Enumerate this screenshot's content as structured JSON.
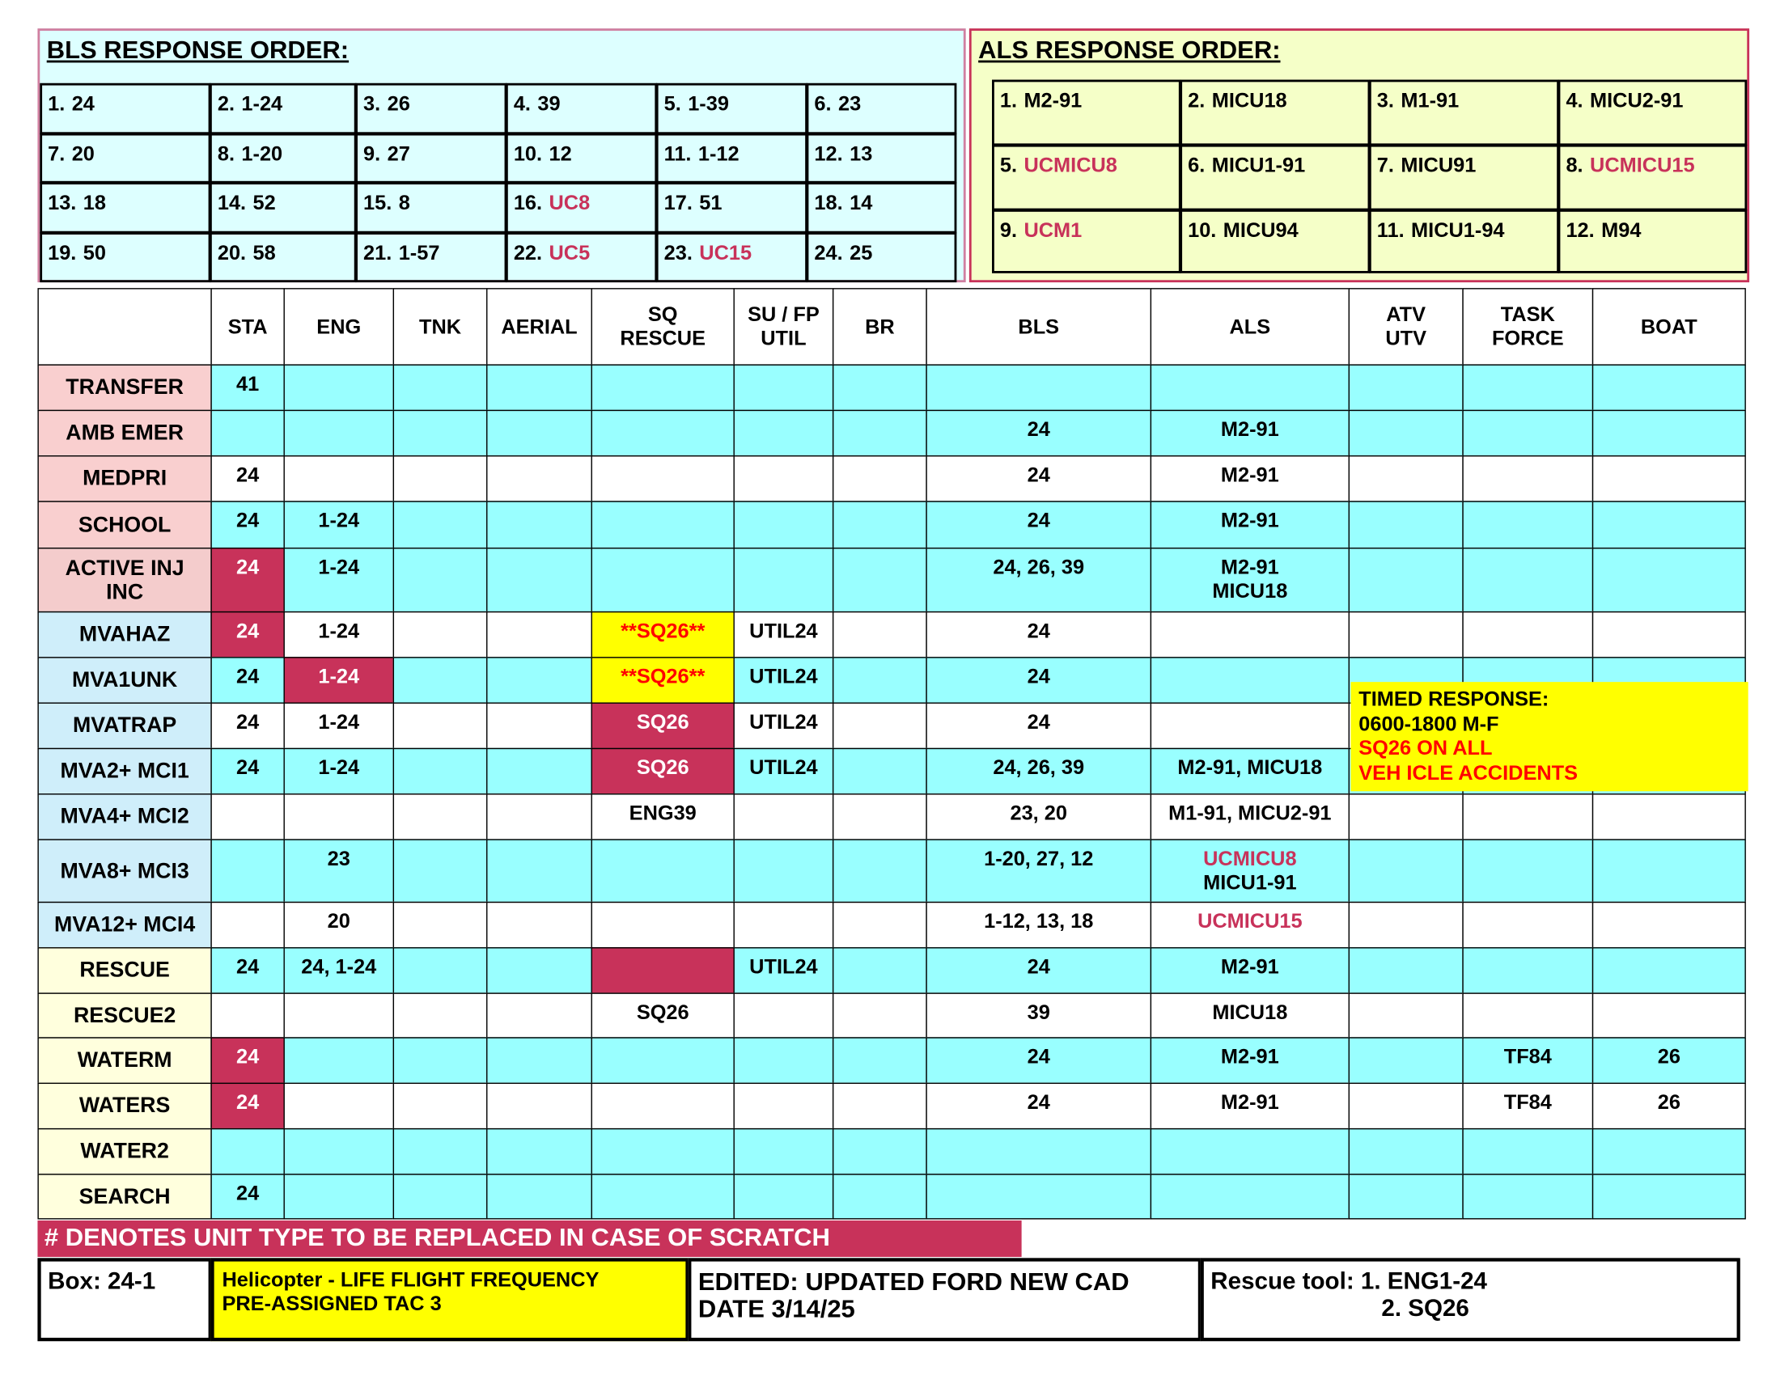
{
  "bls_order": {
    "title": "BLS RESPONSE ORDER:",
    "items": [
      {
        "n": "1.",
        "unit": "24"
      },
      {
        "n": "2.",
        "unit": "1-24"
      },
      {
        "n": "3.",
        "unit": "26"
      },
      {
        "n": "4.",
        "unit": "39"
      },
      {
        "n": "5.",
        "unit": "1-39"
      },
      {
        "n": "6.",
        "unit": "23"
      },
      {
        "n": "7.",
        "unit": "20"
      },
      {
        "n": "8.",
        "unit": "1-20"
      },
      {
        "n": "9.",
        "unit": "27"
      },
      {
        "n": "10.",
        "unit": "12"
      },
      {
        "n": "11.",
        "unit": "1-12"
      },
      {
        "n": "12.",
        "unit": "13"
      },
      {
        "n": "13.",
        "unit": "18"
      },
      {
        "n": "14.",
        "unit": "52"
      },
      {
        "n": "15.",
        "unit": "8"
      },
      {
        "n": "16.",
        "unit": "UC8",
        "color": "#c8325a"
      },
      {
        "n": "17.",
        "unit": "51"
      },
      {
        "n": "18.",
        "unit": "14"
      },
      {
        "n": "19.",
        "unit": "50"
      },
      {
        "n": "20.",
        "unit": "58"
      },
      {
        "n": "21.",
        "unit": "1-57"
      },
      {
        "n": "22.",
        "unit": "UC5",
        "color": "#c8325a"
      },
      {
        "n": "23.",
        "unit": "UC15",
        "color": "#c8325a"
      },
      {
        "n": "24.",
        "unit": "25"
      }
    ]
  },
  "als_order": {
    "title": "ALS RESPONSE ORDER:",
    "items": [
      {
        "n": "1.",
        "unit": "M2-91"
      },
      {
        "n": "2.",
        "unit": "MICU18"
      },
      {
        "n": "3.",
        "unit": "M1-91"
      },
      {
        "n": "4.",
        "unit": "MICU2-91"
      },
      {
        "n": "5.",
        "unit": "UCMICU8",
        "color": "#c8325a"
      },
      {
        "n": "6.",
        "unit": "MICU1-91"
      },
      {
        "n": "7.",
        "unit": "MICU91"
      },
      {
        "n": "8.",
        "unit": "UCMICU15",
        "color": "#c8325a"
      },
      {
        "n": "9.",
        "unit": "UCM1",
        "color": "#c8325a"
      },
      {
        "n": "10.",
        "unit": "MICU94"
      },
      {
        "n": "11.",
        "unit": "MICU1-94"
      },
      {
        "n": "12.",
        "unit": "M94"
      }
    ]
  },
  "table": {
    "columns": [
      "STA",
      "ENG",
      "TNK",
      "AERIAL",
      "SQ\nRESCUE",
      "SU / FP\nUTIL",
      "BR",
      "BLS",
      "ALS",
      "ATV\nUTV",
      "TASK\nFORCE",
      "BOAT"
    ],
    "rows": [
      {
        "label": "TRANSFER",
        "label_bg": "#f9cfcf",
        "bg": "#99ffff",
        "cells": [
          "41",
          null,
          null,
          null,
          null,
          null,
          null,
          null,
          null,
          null,
          null,
          null
        ]
      },
      {
        "label": "AMB EMER",
        "label_bg": "#f9cfcf",
        "bg": "#99ffff",
        "cells": [
          null,
          null,
          null,
          null,
          null,
          null,
          null,
          "24",
          "M2-91",
          null,
          null,
          null
        ]
      },
      {
        "label": "MEDPRI",
        "label_bg": "#f9cfcf",
        "bg": "#ffffff",
        "cells": [
          "24",
          null,
          null,
          null,
          null,
          null,
          null,
          "24",
          "M2-91",
          null,
          null,
          null
        ]
      },
      {
        "label": "SCHOOL",
        "label_bg": "#f9cfcf",
        "bg": "#99ffff",
        "cells": [
          "24",
          "1-24",
          null,
          null,
          null,
          null,
          null,
          "24",
          "M2-91",
          null,
          null,
          null
        ]
      },
      {
        "label": "ACTIVE INJ\nINC",
        "label_bg": "#f4cccc",
        "bg": "#99ffff",
        "cells": [
          {
            "text": "24",
            "fill": "#c8325a",
            "color": "#ffffff"
          },
          "1-24",
          null,
          null,
          null,
          null,
          null,
          "24, 26, 39",
          "M2-91\nMICU18",
          null,
          null,
          null
        ]
      },
      {
        "label": "MVAHAZ",
        "label_bg": "#cfeefa",
        "bg": "#ffffff",
        "cells": [
          {
            "text": "24",
            "fill": "#c8325a",
            "color": "#ffffff"
          },
          "1-24",
          null,
          null,
          {
            "text": "**SQ26**",
            "fill": "#ffff00",
            "color": "#ff0000"
          },
          "UTIL24",
          null,
          "24",
          null,
          null,
          null,
          null
        ]
      },
      {
        "label": "MVA1UNK",
        "label_bg": "#cfeefa",
        "bg": "#99ffff",
        "cells": [
          "24",
          {
            "text": "1-24",
            "fill": "#c8325a",
            "color": "#ffffff"
          },
          null,
          null,
          {
            "text": "**SQ26**",
            "fill": "#ffff00",
            "color": "#ff0000"
          },
          "UTIL24",
          null,
          "24",
          null,
          null,
          null,
          null
        ]
      },
      {
        "label": "MVATRAP",
        "label_bg": "#cfeefa",
        "bg": "#ffffff",
        "cells": [
          "24",
          "1-24",
          null,
          null,
          {
            "text": "SQ26",
            "fill": "#c8325a",
            "color": "#ffffff"
          },
          "UTIL24",
          null,
          "24",
          null,
          null,
          null,
          null
        ]
      },
      {
        "label": "MVA2+ MCI1",
        "label_bg": "#cfeefa",
        "bg": "#99ffff",
        "cells": [
          "24",
          "1-24",
          null,
          null,
          {
            "text": "SQ26",
            "fill": "#c8325a",
            "color": "#ffffff"
          },
          "UTIL24",
          null,
          "24, 26, 39",
          "M2-91, MICU18",
          null,
          null,
          null
        ]
      },
      {
        "label": "MVA4+ MCI2",
        "label_bg": "#cfeefa",
        "bg": "#ffffff",
        "cells": [
          null,
          null,
          null,
          null,
          "ENG39",
          null,
          null,
          "23, 20",
          "M1-91, MICU2-91",
          null,
          null,
          null
        ]
      },
      {
        "label": "MVA8+ MCI3",
        "label_bg": "#cfeefa",
        "bg": "#99ffff",
        "cells": [
          null,
          "23",
          null,
          null,
          null,
          null,
          null,
          "1-20, 27, 12",
          [
            {
              "text": "UCMICU8",
              "color": "#c8325a"
            },
            {
              "text": "MICU1-91"
            }
          ],
          null,
          null,
          null
        ]
      },
      {
        "label": "MVA12+ MCI4",
        "label_bg": "#cfeefa",
        "bg": "#ffffff",
        "cells": [
          null,
          "20",
          null,
          null,
          null,
          null,
          null,
          "1-12, 13, 18",
          {
            "text": "UCMICU15",
            "color": "#c8325a"
          },
          null,
          null,
          null
        ]
      },
      {
        "label": "RESCUE",
        "label_bg": "#ffffdd",
        "bg": "#99ffff",
        "cells": [
          "24",
          "24, 1-24",
          null,
          null,
          {
            "fill": "#c8325a"
          },
          "UTIL24",
          null,
          "24",
          "M2-91",
          null,
          null,
          null
        ]
      },
      {
        "label": "RESCUE2",
        "label_bg": "#ffffdd",
        "bg": "#ffffff",
        "cells": [
          null,
          null,
          null,
          null,
          "SQ26",
          null,
          null,
          "39",
          "MICU18",
          null,
          null,
          null
        ]
      },
      {
        "label": "WATERM",
        "label_bg": "#ffffdd",
        "bg": "#99ffff",
        "cells": [
          {
            "text": "24",
            "fill": "#c8325a",
            "color": "#ffffff"
          },
          null,
          null,
          null,
          null,
          null,
          null,
          "24",
          "M2-91",
          null,
          "TF84",
          "26"
        ]
      },
      {
        "label": "WATERS",
        "label_bg": "#ffffdd",
        "bg": "#ffffff",
        "cells": [
          {
            "text": "24",
            "fill": "#c8325a",
            "color": "#ffffff"
          },
          null,
          null,
          null,
          null,
          null,
          null,
          "24",
          "M2-91",
          null,
          "TF84",
          "26"
        ]
      },
      {
        "label": "WATER2",
        "label_bg": "#ffffdd",
        "bg": "#99ffff",
        "cells": [
          null,
          null,
          null,
          null,
          null,
          null,
          null,
          null,
          null,
          null,
          null,
          null
        ]
      },
      {
        "label": "SEARCH",
        "label_bg": "#ffffdd",
        "bg": "#99ffff",
        "cells": [
          "24",
          null,
          null,
          null,
          null,
          null,
          null,
          null,
          null,
          null,
          null,
          null
        ]
      }
    ]
  },
  "timed_response": {
    "lines": [
      {
        "text": "TIMED RESPONSE:"
      },
      {
        "text": "0600-1800 M-F"
      },
      {
        "text": "SQ26 ON ALL",
        "color": "#ff0000"
      },
      {
        "text": "VEH ICLE ACCIDENTS",
        "color": "#ff0000"
      }
    ]
  },
  "scratch_note": "# DENOTES UNIT  TYPE TO BE REPLACED IN CASE OF SCRATCH",
  "footer": {
    "box": "Box: 24-1",
    "helicopter": [
      "Helicopter  - LIFE FLIGHT FREQUENCY",
      "PRE-ASSIGNED TAC 3"
    ],
    "edited": [
      "EDITED:  UPDATED FORD NEW CAD",
      "DATE 3/14/25"
    ],
    "rescue_tool": [
      "Rescue tool: 1.  ENG1-24",
      "2.  SQ26"
    ]
  }
}
